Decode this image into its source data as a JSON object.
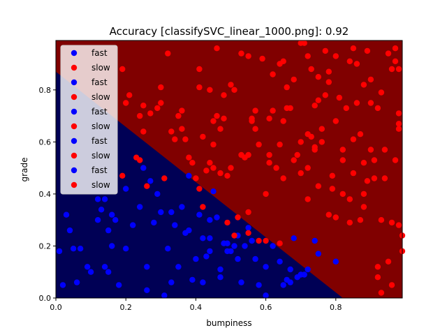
{
  "chart_data": {
    "type": "scatter",
    "title": "Accuracy [classifySVC_linear_1000.png]: 0.92",
    "xlabel": "bumpiness",
    "ylabel": "grade",
    "xlim": [
      0.0,
      0.99
    ],
    "ylim": [
      0.0,
      0.99
    ],
    "xticks": [
      "0.0",
      "0.2",
      "0.4",
      "0.6",
      "0.8"
    ],
    "xtick_values": [
      0.0,
      0.2,
      0.4,
      0.6,
      0.8
    ],
    "yticks": [
      "0.0",
      "0.2",
      "0.4",
      "0.6",
      "0.8"
    ],
    "ytick_values": [
      0.0,
      0.2,
      0.4,
      0.6,
      0.8
    ],
    "grid": false,
    "legend_position": "top-left",
    "legend": [
      "fast",
      "slow",
      "fast",
      "slow",
      "fast",
      "slow",
      "fast",
      "slow",
      "fast",
      "slow"
    ],
    "decision_boundary": {
      "x": [
        0.0,
        0.82
      ],
      "y": [
        0.87,
        0.0
      ]
    },
    "background_colors": {
      "fast": "#000055",
      "slow": "#800000"
    },
    "point_colors": {
      "fast": "#0000ff",
      "slow": "#ff0000"
    },
    "series": [
      {
        "name": "fast",
        "points": [
          [
            0.01,
            0.18
          ],
          [
            0.03,
            0.32
          ],
          [
            0.04,
            0.26
          ],
          [
            0.05,
            0.19
          ],
          [
            0.06,
            0.06
          ],
          [
            0.07,
            0.19
          ],
          [
            0.1,
            0.1
          ],
          [
            0.12,
            0.38
          ],
          [
            0.12,
            0.3
          ],
          [
            0.13,
            0.34
          ],
          [
            0.14,
            0.12
          ],
          [
            0.14,
            0.38
          ],
          [
            0.15,
            0.26
          ],
          [
            0.15,
            0.1
          ],
          [
            0.16,
            0.32
          ],
          [
            0.17,
            0.3
          ],
          [
            0.18,
            0.05
          ],
          [
            0.2,
            0.42
          ],
          [
            0.2,
            0.19
          ],
          [
            0.22,
            0.28
          ],
          [
            0.24,
            0.35
          ],
          [
            0.25,
            0.5
          ],
          [
            0.26,
            0.03
          ],
          [
            0.27,
            0.45
          ],
          [
            0.28,
            0.29
          ],
          [
            0.29,
            0.4
          ],
          [
            0.3,
            0.33
          ],
          [
            0.31,
            0.01
          ],
          [
            0.32,
            0.19
          ],
          [
            0.33,
            0.33
          ],
          [
            0.34,
            0.28
          ],
          [
            0.35,
            0.12
          ],
          [
            0.36,
            0.35
          ],
          [
            0.37,
            0.25
          ],
          [
            0.38,
            0.26
          ],
          [
            0.38,
            0.47
          ],
          [
            0.39,
            0.07
          ],
          [
            0.4,
            0.15
          ],
          [
            0.41,
            0.32
          ],
          [
            0.42,
            0.23
          ],
          [
            0.42,
            0.06
          ],
          [
            0.43,
            0.16
          ],
          [
            0.44,
            0.18
          ],
          [
            0.44,
            0.3
          ],
          [
            0.44,
            0.23
          ],
          [
            0.45,
            0.41
          ],
          [
            0.46,
            0.31
          ],
          [
            0.47,
            0.11
          ],
          [
            0.48,
            0.21
          ],
          [
            0.49,
            0.18
          ],
          [
            0.49,
            0.21
          ],
          [
            0.5,
            0.18
          ],
          [
            0.51,
            0.2
          ],
          [
            0.52,
            0.15
          ],
          [
            0.52,
            0.24
          ],
          [
            0.53,
            0.06
          ],
          [
            0.54,
            0.2
          ],
          [
            0.55,
            0.27
          ],
          [
            0.56,
            0.22
          ],
          [
            0.57,
            0.15
          ],
          [
            0.58,
            0.05
          ],
          [
            0.6,
            0.01
          ],
          [
            0.6,
            0.12
          ],
          [
            0.62,
            0.2
          ],
          [
            0.64,
            0.14
          ],
          [
            0.65,
            0.05
          ],
          [
            0.66,
            0.07
          ],
          [
            0.67,
            0.11
          ],
          [
            0.68,
            0.23
          ],
          [
            0.69,
            0.08
          ],
          [
            0.7,
            0.09
          ],
          [
            0.71,
            0.09
          ],
          [
            0.72,
            0.11
          ],
          [
            0.74,
            0.22
          ],
          [
            0.75,
            0.17
          ],
          [
            0.8,
            0.14
          ],
          [
            0.8,
            0.14
          ],
          [
            0.67,
            0.06
          ],
          [
            0.02,
            0.05
          ],
          [
            0.09,
            0.12
          ],
          [
            0.16,
            0.2
          ],
          [
            0.26,
            0.12
          ],
          [
            0.33,
            0.06
          ],
          [
            0.47,
            0.08
          ]
        ]
      },
      {
        "name": "slow",
        "points": [
          [
            0.19,
            0.88
          ],
          [
            0.2,
            0.75
          ],
          [
            0.21,
            0.78
          ],
          [
            0.23,
            0.54
          ],
          [
            0.24,
            0.53
          ],
          [
            0.24,
            0.7
          ],
          [
            0.25,
            0.74
          ],
          [
            0.25,
            0.64
          ],
          [
            0.27,
            0.71
          ],
          [
            0.29,
            0.73
          ],
          [
            0.3,
            0.75
          ],
          [
            0.3,
            0.81
          ],
          [
            0.31,
            0.46
          ],
          [
            0.32,
            0.94
          ],
          [
            0.33,
            0.64
          ],
          [
            0.34,
            0.61
          ],
          [
            0.35,
            0.7
          ],
          [
            0.36,
            0.72
          ],
          [
            0.36,
            0.65
          ],
          [
            0.37,
            0.61
          ],
          [
            0.38,
            0.54
          ],
          [
            0.39,
            0.52
          ],
          [
            0.4,
            0.46
          ],
          [
            0.41,
            0.88
          ],
          [
            0.41,
            0.81
          ],
          [
            0.41,
            0.42
          ],
          [
            0.42,
            0.62
          ],
          [
            0.42,
            0.35
          ],
          [
            0.43,
            0.49
          ],
          [
            0.44,
            0.8
          ],
          [
            0.44,
            0.52
          ],
          [
            0.45,
            0.5
          ],
          [
            0.45,
            0.68
          ],
          [
            0.45,
            0.59
          ],
          [
            0.46,
            0.96
          ],
          [
            0.46,
            0.7
          ],
          [
            0.47,
            0.65
          ],
          [
            0.48,
            0.69
          ],
          [
            0.48,
            0.78
          ],
          [
            0.49,
            0.47
          ],
          [
            0.49,
            0.29
          ],
          [
            0.5,
            0.5
          ],
          [
            0.5,
            0.82
          ],
          [
            0.51,
            0.8
          ],
          [
            0.51,
            0.24
          ],
          [
            0.52,
            0.31
          ],
          [
            0.53,
            0.94
          ],
          [
            0.54,
            0.54
          ],
          [
            0.55,
            0.55
          ],
          [
            0.55,
            0.93
          ],
          [
            0.55,
            0.25
          ],
          [
            0.56,
            0.68
          ],
          [
            0.56,
            0.69
          ],
          [
            0.57,
            0.65
          ],
          [
            0.57,
            0.72
          ],
          [
            0.58,
            0.22
          ],
          [
            0.58,
            0.59
          ],
          [
            0.59,
            0.92
          ],
          [
            0.6,
            0.22
          ],
          [
            0.61,
            0.55
          ],
          [
            0.61,
            0.52
          ],
          [
            0.61,
            0.69
          ],
          [
            0.62,
            0.72
          ],
          [
            0.63,
            0.5
          ],
          [
            0.64,
            0.9
          ],
          [
            0.64,
            0.21
          ],
          [
            0.64,
            0.59
          ],
          [
            0.65,
            0.91
          ],
          [
            0.65,
            0.46
          ],
          [
            0.66,
            0.73
          ],
          [
            0.66,
            0.81
          ],
          [
            0.67,
            0.73
          ],
          [
            0.68,
            0.53
          ],
          [
            0.69,
            0.55
          ],
          [
            0.7,
            0.48
          ],
          [
            0.7,
            0.98
          ],
          [
            0.71,
            0.98
          ],
          [
            0.72,
            0.63
          ],
          [
            0.72,
            0.38
          ],
          [
            0.72,
            0.93
          ],
          [
            0.72,
            0.5
          ],
          [
            0.73,
            0.62
          ],
          [
            0.74,
            0.58
          ],
          [
            0.74,
            0.57
          ],
          [
            0.74,
            0.74
          ],
          [
            0.75,
            0.43
          ],
          [
            0.75,
            0.76
          ],
          [
            0.75,
            0.85
          ],
          [
            0.76,
            0.6
          ],
          [
            0.76,
            0.65
          ],
          [
            0.77,
            0.78
          ],
          [
            0.78,
            0.32
          ],
          [
            0.78,
            0.83
          ],
          [
            0.79,
            0.42
          ],
          [
            0.79,
            0.47
          ],
          [
            0.8,
            0.68
          ],
          [
            0.8,
            0.31
          ],
          [
            0.81,
            0.77
          ],
          [
            0.82,
            0.57
          ],
          [
            0.82,
            0.53
          ],
          [
            0.82,
            0.4
          ],
          [
            0.83,
            0.73
          ],
          [
            0.84,
            0.38
          ],
          [
            0.84,
            0.29
          ],
          [
            0.84,
            0.91
          ],
          [
            0.85,
            0.48
          ],
          [
            0.85,
            0.61
          ],
          [
            0.86,
            0.9
          ],
          [
            0.87,
            0.3
          ],
          [
            0.87,
            0.63
          ],
          [
            0.88,
            0.4
          ],
          [
            0.88,
            0.35
          ],
          [
            0.88,
            0.52
          ],
          [
            0.88,
            0.82
          ],
          [
            0.89,
            0.45
          ],
          [
            0.9,
            0.57
          ],
          [
            0.9,
            0.75
          ],
          [
            0.9,
            0.84
          ],
          [
            0.91,
            0.46
          ],
          [
            0.91,
            0.53
          ],
          [
            0.92,
            0.73
          ],
          [
            0.92,
            0.08
          ],
          [
            0.92,
            0.12
          ],
          [
            0.93,
            0.3
          ],
          [
            0.93,
            0.79
          ],
          [
            0.94,
            0.46
          ],
          [
            0.94,
            0.57
          ],
          [
            0.95,
            0.94
          ],
          [
            0.96,
            0.29
          ],
          [
            0.96,
            0.88
          ],
          [
            0.97,
            0.53
          ],
          [
            0.97,
            0.96
          ],
          [
            0.97,
            0.91
          ],
          [
            0.98,
            0.67
          ],
          [
            0.98,
            0.28
          ],
          [
            0.98,
            0.88
          ],
          [
            0.98,
            0.65
          ],
          [
            0.98,
            0.71
          ],
          [
            0.99,
            0.18
          ],
          [
            0.99,
            0.24
          ],
          [
            0.19,
            0.47
          ],
          [
            0.26,
            0.43
          ],
          [
            0.47,
            0.48
          ],
          [
            0.53,
            0.55
          ],
          [
            0.55,
            0.33
          ],
          [
            0.6,
            0.4
          ],
          [
            0.65,
            0.68
          ],
          [
            0.7,
            0.6
          ],
          [
            0.73,
            0.88
          ],
          [
            0.77,
            0.95
          ],
          [
            0.8,
            0.93
          ],
          [
            0.85,
            0.96
          ],
          [
            0.89,
            0.95
          ],
          [
            0.93,
            0.02
          ],
          [
            0.95,
            0.14
          ],
          [
            0.96,
            0.05
          ],
          [
            0.62,
            0.86
          ],
          [
            0.68,
            0.84
          ],
          [
            0.78,
            0.87
          ],
          [
            0.86,
            0.75
          ]
        ]
      }
    ]
  }
}
